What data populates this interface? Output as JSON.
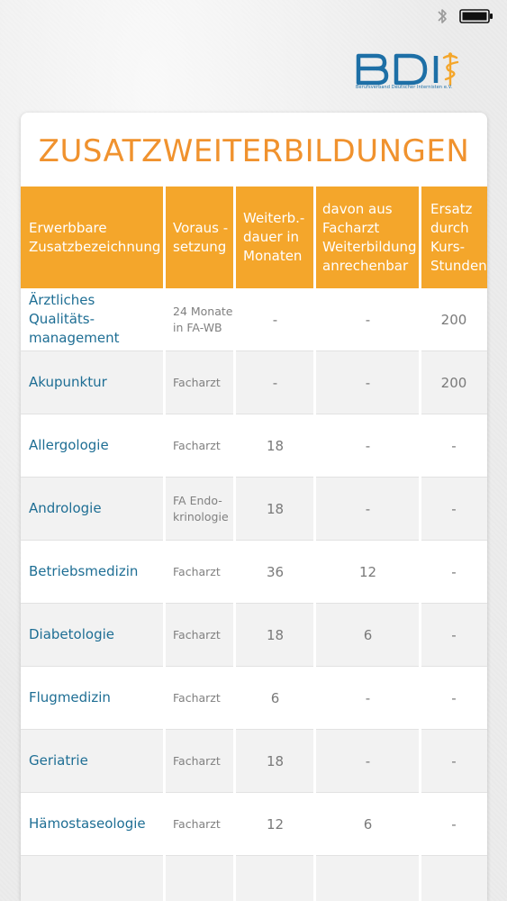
{
  "colors": {
    "accent_orange": "#f4a62b",
    "title_orange": "#f0922e",
    "name_blue": "#1e6e94",
    "logo_blue": "#1d6fa6"
  },
  "status_bar": {
    "icons": [
      "bluetooth-icon",
      "battery-icon"
    ]
  },
  "logo": {
    "letters": "BDI",
    "subtitle": "Berufsverband Deutscher Internisten e.V."
  },
  "title": "ZUSATZWEITERBILDUNGEN",
  "table": {
    "headers": [
      "Erwerbbare\nZusatzbezeichnung",
      "Voraus -\nsetzung",
      "Weiterb.-\ndauer in\nMonaten",
      "davon aus\nFacharzt\nWeiterbildung\nanrechenbar",
      "Ersatz\ndurch\nKurs-\nStunden"
    ],
    "rows": [
      [
        "Ärztliches Qualitäts-\nmanagement",
        "24 Monate\nin FA-WB",
        "-",
        "-",
        "200"
      ],
      [
        "Akupunktur",
        "Facharzt",
        "-",
        "-",
        "200"
      ],
      [
        "Allergologie",
        "Facharzt",
        "18",
        "-",
        "-"
      ],
      [
        "Andrologie",
        "FA Endo-\nkrinologie",
        "18",
        "-",
        "-"
      ],
      [
        "Betriebsmedizin",
        "Facharzt",
        "36",
        "12",
        "-"
      ],
      [
        "Diabetologie",
        "Facharzt",
        "18",
        "6",
        "-"
      ],
      [
        "Flugmedizin",
        "Facharzt",
        "6",
        "-",
        "-"
      ],
      [
        "Geriatrie",
        "Facharzt",
        "18",
        "-",
        "-"
      ],
      [
        "Hämostaseologie",
        "Facharzt",
        "12",
        "6",
        "-"
      ],
      [
        "",
        "",
        "",
        "",
        ""
      ]
    ]
  }
}
